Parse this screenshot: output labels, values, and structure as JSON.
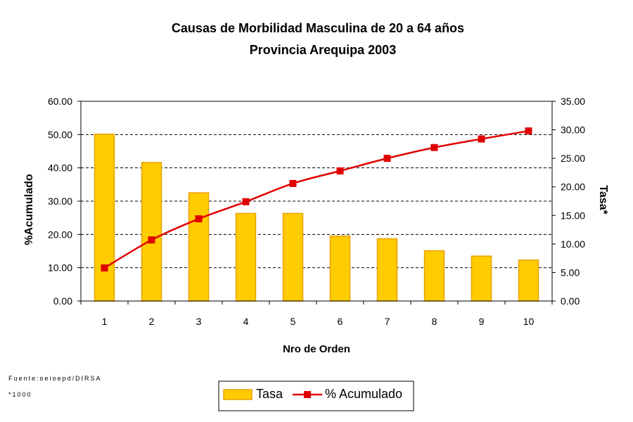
{
  "chart_data": {
    "type": "bar",
    "title": "Causas de Morbilidad Masculina de 20 a 64 años",
    "subtitle": "Provincia Arequipa 2003",
    "xlabel": "Nro de Orden",
    "ylabel_left": "%Acumulado",
    "ylabel_right": "Tasa*",
    "categories": [
      "1",
      "2",
      "3",
      "4",
      "5",
      "6",
      "7",
      "8",
      "9",
      "10"
    ],
    "left_axis": {
      "ylim": [
        0,
        60
      ],
      "ticks": [
        0,
        10,
        20,
        30,
        40,
        50,
        60
      ],
      "tick_labels": [
        "0.00",
        "10.00",
        "20.00",
        "30.00",
        "40.00",
        "50.00",
        "60.00"
      ]
    },
    "right_axis": {
      "ylim": [
        0,
        35
      ],
      "ticks": [
        0,
        5,
        10,
        15,
        20,
        25,
        30,
        35
      ],
      "tick_labels": [
        "0.00",
        "5.00",
        "10.00",
        "15.00",
        "20.00",
        "25.00",
        "30.00",
        "35.00"
      ]
    },
    "grid": true,
    "legend_position": "bottom-center",
    "series": [
      {
        "name": "Tasa",
        "type": "bar",
        "axis": "left",
        "color": "#FFCC00",
        "edge_color": "#E8A000",
        "values": [
          50.1,
          41.6,
          32.5,
          26.3,
          26.3,
          19.5,
          18.7,
          15.1,
          13.5,
          12.3
        ]
      },
      {
        "name": "% Acumulado",
        "type": "line",
        "axis": "right",
        "color": "#E00000",
        "values": [
          5.8,
          10.7,
          14.4,
          17.4,
          20.6,
          22.8,
          25.0,
          26.9,
          28.4,
          29.8
        ]
      }
    ],
    "footnotes": [
      "Fuente:oeioepd/DIRSA",
      "*1000"
    ]
  }
}
